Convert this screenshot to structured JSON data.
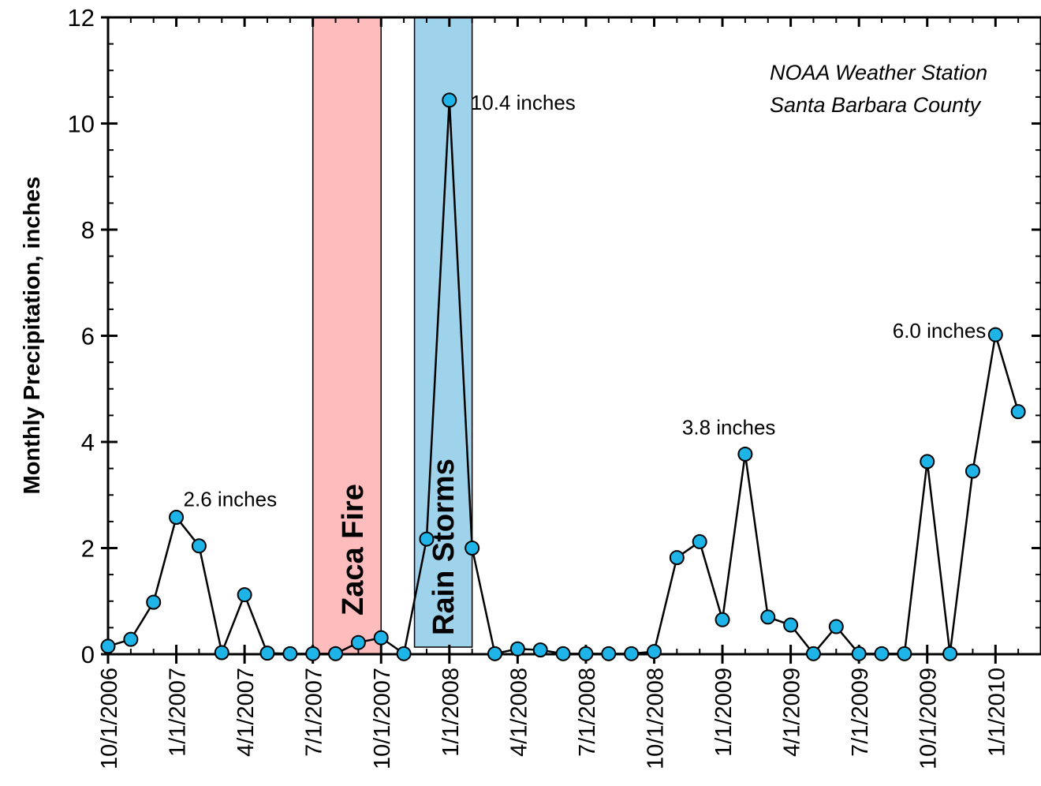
{
  "chart_data": {
    "type": "line",
    "ylabel": "Monthly Precipitation, inches",
    "xlabel": "",
    "ylim": [
      0,
      12
    ],
    "yticks": [
      0,
      2,
      4,
      6,
      8,
      10,
      12
    ],
    "xlim": [
      "10/1/2006",
      "3/1/2010"
    ],
    "x_tick_labels": [
      "10/1/2006",
      "1/1/2007",
      "4/1/2007",
      "7/1/2007",
      "10/1/2007",
      "1/1/2008",
      "4/1/2008",
      "7/1/2008",
      "10/1/2008",
      "1/1/2009",
      "4/1/2009",
      "7/1/2009",
      "10/1/2009",
      "1/1/2010"
    ],
    "grid": false,
    "station_label": [
      "NOAA Weather Station",
      "Santa Barbara County"
    ],
    "series": [
      {
        "color": "#1eb4e8",
        "x": [
          "10/1/2006",
          "11/1/2006",
          "12/1/2006",
          "1/1/2007",
          "2/1/2007",
          "3/1/2007",
          "4/1/2007",
          "5/1/2007",
          "6/1/2007",
          "7/1/2007",
          "8/1/2007",
          "9/1/2007",
          "10/1/2007",
          "11/1/2007",
          "12/1/2007",
          "1/1/2008",
          "2/1/2008",
          "3/1/2008",
          "4/1/2008",
          "5/1/2008",
          "6/1/2008",
          "7/1/2008",
          "8/1/2008",
          "9/1/2008",
          "10/1/2008",
          "11/1/2008",
          "12/1/2008",
          "1/1/2009",
          "2/1/2009",
          "3/1/2009",
          "4/1/2009",
          "5/1/2009",
          "6/1/2009",
          "7/1/2009",
          "8/1/2009",
          "9/1/2009",
          "10/1/2009",
          "11/1/2009",
          "12/1/2009",
          "1/1/2010",
          "2/1/2010"
        ],
        "values": [
          0.15,
          0.28,
          0.98,
          2.58,
          2.04,
          0.03,
          1.12,
          0.02,
          0.01,
          0.01,
          0.01,
          0.22,
          0.31,
          0.01,
          2.17,
          10.44,
          2.0,
          0.01,
          0.1,
          0.08,
          0.01,
          0.01,
          0.01,
          0.01,
          0.05,
          1.82,
          2.12,
          0.65,
          3.77,
          0.7,
          0.55,
          0.01,
          0.52,
          0.01,
          0.01,
          0.01,
          3.63,
          0.01,
          3.45,
          6.02,
          4.57
        ]
      }
    ],
    "annotations": [
      {
        "text": "2.6 inches",
        "x": "1/1/2007",
        "y": 2.58
      },
      {
        "text": "10.4 inches",
        "x": "1/1/2008",
        "y": 10.44
      },
      {
        "text": "3.8 inches",
        "x": "2/1/2009",
        "y": 3.77
      },
      {
        "text": "6.0 inches",
        "x": "1/1/2010",
        "y": 6.02
      }
    ],
    "highlight_bands": [
      {
        "label": "Zaca Fire",
        "x_start": "7/1/2007",
        "x_end": "10/1/2007",
        "color": "#ffbcbc"
      },
      {
        "label": "Rain Storms",
        "x_start": "11/15/2007",
        "x_end": "2/1/2008",
        "color": "#9fd3eb"
      }
    ]
  }
}
